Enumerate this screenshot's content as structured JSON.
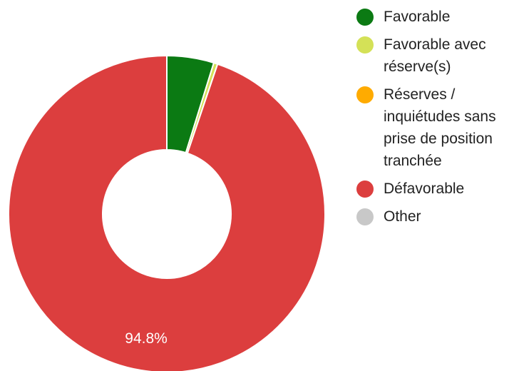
{
  "chart_data": {
    "type": "donut",
    "categories": [
      "Favorable",
      "Favorable avec réserve(s)",
      "Réserves / inquiétudes sans prise de position tranchée",
      "Défavorable",
      "Other"
    ],
    "values": [
      4.8,
      0.4,
      0,
      94.8,
      0
    ],
    "value_labels": [
      null,
      null,
      null,
      "94.8%",
      null
    ],
    "colors": [
      "#0b7a13",
      "#d4e157",
      "#ffab00",
      "#dc3e3e",
      "#c8c8c8"
    ],
    "legend": "right"
  }
}
